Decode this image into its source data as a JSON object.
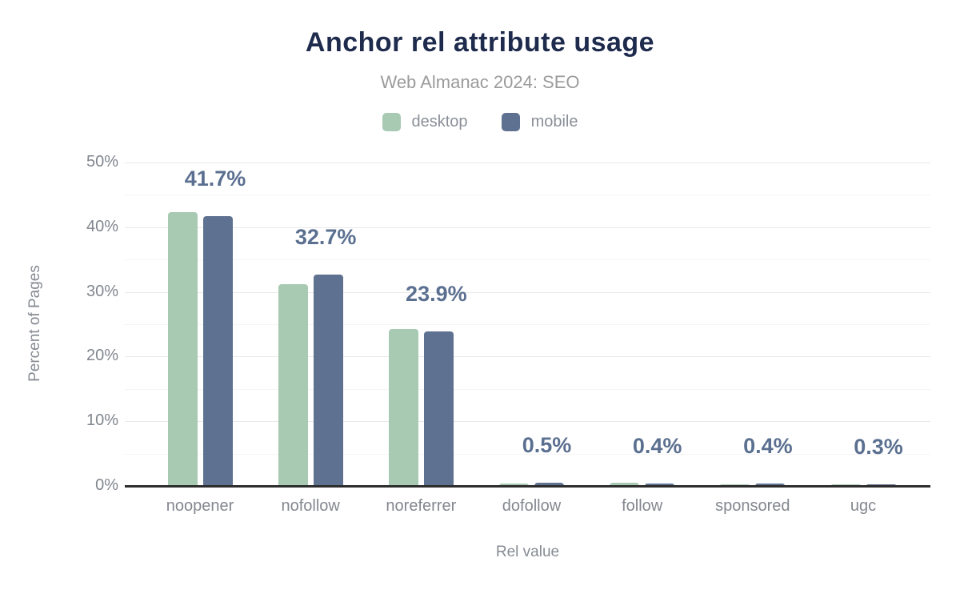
{
  "header": {
    "title": "Anchor rel attribute usage",
    "subtitle": "Web Almanac 2024: SEO"
  },
  "legend": {
    "items": [
      {
        "label": "desktop",
        "color": "#a8c9b2"
      },
      {
        "label": "mobile",
        "color": "#5f7190"
      }
    ]
  },
  "colors": {
    "title_navy": "#1e2b4c",
    "subtitle_gray": "#9b9b9b",
    "desktop_green": "#a8c9b2",
    "mobile_slate": "#5f7190",
    "data_label_slate": "#5b7090",
    "axis_text_gray": "#81868e",
    "axis_line_dark": "#2d2d2d",
    "gridline_major": "#e9e9e9",
    "gridline_minor": "#f4f4f4"
  },
  "chart_data": {
    "type": "bar",
    "title": "Anchor rel attribute usage",
    "subtitle": "Web Almanac 2024: SEO",
    "categories": [
      "noopener",
      "nofollow",
      "noreferrer",
      "dofollow",
      "follow",
      "sponsored",
      "ugc"
    ],
    "series": [
      {
        "name": "desktop",
        "color": "#a8c9b2",
        "values": [
          42.3,
          31.2,
          24.3,
          0.4,
          0.5,
          0.3,
          0.3
        ]
      },
      {
        "name": "mobile",
        "color": "#5f7190",
        "values": [
          41.7,
          32.7,
          23.9,
          0.5,
          0.4,
          0.4,
          0.3
        ]
      }
    ],
    "data_labels": [
      "41.7%",
      "32.7%",
      "23.9%",
      "0.5%",
      "0.4%",
      "0.4%",
      "0.3%"
    ],
    "data_labels_series": "mobile",
    "xlabel": "Rel value",
    "ylabel": "Percent of Pages",
    "ylim": [
      0,
      50
    ],
    "yticks": [
      "0%",
      "10%",
      "20%",
      "30%",
      "40%",
      "50%"
    ],
    "ytick_values": [
      0,
      10,
      20,
      30,
      40,
      50
    ],
    "grid": "horizontal every 5%, light gray",
    "legend_position": "top center"
  }
}
